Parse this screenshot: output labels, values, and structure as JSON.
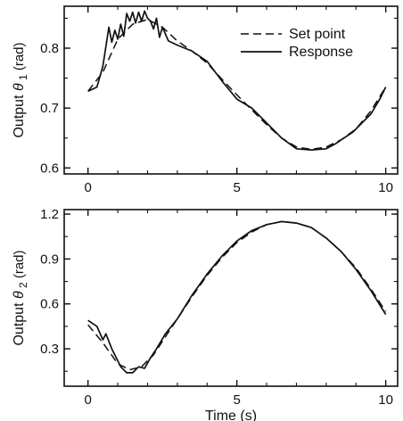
{
  "chart_data": [
    {
      "type": "line",
      "title": "",
      "xlabel": "",
      "ylabel_prefix": "Output ",
      "ylabel_symbol": "θ",
      "ylabel_subscript": "1",
      "ylabel_unit": " (rad)",
      "xlim": [
        -0.8,
        10.4
      ],
      "ylim": [
        0.59,
        0.87
      ],
      "xticks": [
        0,
        5,
        10
      ],
      "xtick_labels": [
        "0",
        "5",
        "10"
      ],
      "yticks": [
        0.6,
        0.7,
        0.8
      ],
      "ytick_labels": [
        "0.6",
        "0.7",
        "0.8"
      ],
      "grid": false,
      "legend": "top-right",
      "series": [
        {
          "name": "Set point",
          "style": "dashed",
          "x": [
            0,
            0.5,
            1.0,
            1.5,
            2.0,
            2.5,
            3.0,
            3.5,
            4.0,
            4.5,
            5.0,
            5.5,
            6.0,
            6.5,
            7.0,
            7.5,
            8.0,
            8.5,
            9.0,
            9.5,
            10.0
          ],
          "y": [
            0.728,
            0.76,
            0.815,
            0.84,
            0.848,
            0.835,
            0.812,
            0.795,
            0.775,
            0.748,
            0.722,
            0.697,
            0.672,
            0.65,
            0.635,
            0.631,
            0.635,
            0.647,
            0.665,
            0.695,
            0.735
          ]
        },
        {
          "name": "Response",
          "style": "solid",
          "x": [
            0,
            0.3,
            0.5,
            0.7,
            0.8,
            0.9,
            1.0,
            1.1,
            1.2,
            1.3,
            1.4,
            1.5,
            1.6,
            1.7,
            1.8,
            1.9,
            2.0,
            2.1,
            2.2,
            2.3,
            2.4,
            2.5,
            2.7,
            3.0,
            3.5,
            4.0,
            4.5,
            5.0,
            5.5,
            6.0,
            6.5,
            7.0,
            7.5,
            8.0,
            8.3,
            8.6,
            8.9,
            9.2,
            9.5,
            9.8,
            10.0
          ],
          "y": [
            0.728,
            0.735,
            0.77,
            0.835,
            0.81,
            0.83,
            0.815,
            0.84,
            0.82,
            0.858,
            0.845,
            0.86,
            0.842,
            0.86,
            0.845,
            0.862,
            0.85,
            0.845,
            0.832,
            0.85,
            0.818,
            0.835,
            0.812,
            0.805,
            0.795,
            0.778,
            0.745,
            0.715,
            0.7,
            0.675,
            0.65,
            0.632,
            0.63,
            0.632,
            0.64,
            0.65,
            0.66,
            0.675,
            0.69,
            0.715,
            0.735
          ]
        }
      ]
    },
    {
      "type": "line",
      "title": "",
      "xlabel": "Time (s)",
      "ylabel_prefix": "Output ",
      "ylabel_symbol": "θ",
      "ylabel_subscript": "2",
      "ylabel_unit": " (rad)",
      "xlim": [
        -0.8,
        10.4
      ],
      "ylim": [
        0.05,
        1.23
      ],
      "xticks": [
        0,
        5,
        10
      ],
      "xtick_labels": [
        "0",
        "5",
        "10"
      ],
      "yticks": [
        0.3,
        0.6,
        0.9,
        1.2
      ],
      "ytick_labels": [
        "0.3",
        "0.6",
        "0.9",
        "1.2"
      ],
      "grid": false,
      "series": [
        {
          "name": "Set point",
          "style": "dashed",
          "x": [
            0,
            0.5,
            1.0,
            1.4,
            1.8,
            2.2,
            2.6,
            3.0,
            3.5,
            4.0,
            4.5,
            5.0,
            5.5,
            6.0,
            6.5,
            7.0,
            7.5,
            8.0,
            8.5,
            9.0,
            9.5,
            10.0
          ],
          "y": [
            0.46,
            0.34,
            0.2,
            0.16,
            0.18,
            0.26,
            0.38,
            0.5,
            0.65,
            0.79,
            0.91,
            1.01,
            1.08,
            1.13,
            1.15,
            1.14,
            1.11,
            1.04,
            0.95,
            0.84,
            0.7,
            0.55
          ]
        },
        {
          "name": "Response",
          "style": "solid",
          "x": [
            0,
            0.3,
            0.5,
            0.6,
            0.8,
            1.0,
            1.1,
            1.3,
            1.5,
            1.7,
            1.9,
            2.1,
            2.3,
            2.6,
            3.0,
            3.5,
            4.0,
            4.5,
            5.0,
            5.5,
            6.0,
            6.5,
            7.0,
            7.5,
            8.0,
            8.5,
            9.0,
            9.5,
            10.0
          ],
          "y": [
            0.49,
            0.45,
            0.36,
            0.4,
            0.3,
            0.22,
            0.18,
            0.14,
            0.14,
            0.18,
            0.17,
            0.24,
            0.3,
            0.4,
            0.5,
            0.66,
            0.8,
            0.92,
            1.02,
            1.09,
            1.13,
            1.15,
            1.14,
            1.11,
            1.04,
            0.95,
            0.83,
            0.69,
            0.53
          ]
        }
      ]
    }
  ]
}
